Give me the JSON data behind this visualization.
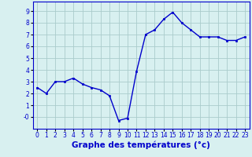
{
  "hours": [
    0,
    1,
    2,
    3,
    4,
    5,
    6,
    7,
    8,
    9,
    10,
    11,
    12,
    13,
    14,
    15,
    16,
    17,
    18,
    19,
    20,
    21,
    22,
    23
  ],
  "temps": [
    2.5,
    2.0,
    3.0,
    3.0,
    3.3,
    2.8,
    2.5,
    2.3,
    1.8,
    -0.3,
    -0.1,
    3.9,
    7.0,
    7.4,
    8.3,
    8.9,
    8.0,
    7.4,
    6.8,
    6.8,
    6.8,
    6.5,
    6.5,
    6.8
  ],
  "line_color": "#0000cc",
  "marker": "s",
  "marker_size": 2.0,
  "bg_color": "#d8f0f0",
  "grid_color": "#aacccc",
  "xlabel": "Graphe des températures (°c)",
  "xlabel_color": "#0000cc",
  "ylim": [
    -1.0,
    9.8
  ],
  "yticks": [
    0,
    1,
    2,
    3,
    4,
    5,
    6,
    7,
    8,
    9
  ],
  "ytick_labels": [
    "0",
    "1",
    "2",
    "3",
    "4",
    "5",
    "6",
    "7",
    "8",
    "9"
  ],
  "xtick_labels": [
    "0",
    "1",
    "2",
    "3",
    "4",
    "5",
    "6",
    "7",
    "8",
    "9",
    "10",
    "11",
    "12",
    "13",
    "14",
    "15",
    "16",
    "17",
    "18",
    "19",
    "20",
    "21",
    "22",
    "23"
  ],
  "spine_color": "#0000cc",
  "tick_color": "#0000cc",
  "tick_fontsize": 5.5,
  "xlabel_fontsize": 7.5,
  "linewidth": 1.0
}
